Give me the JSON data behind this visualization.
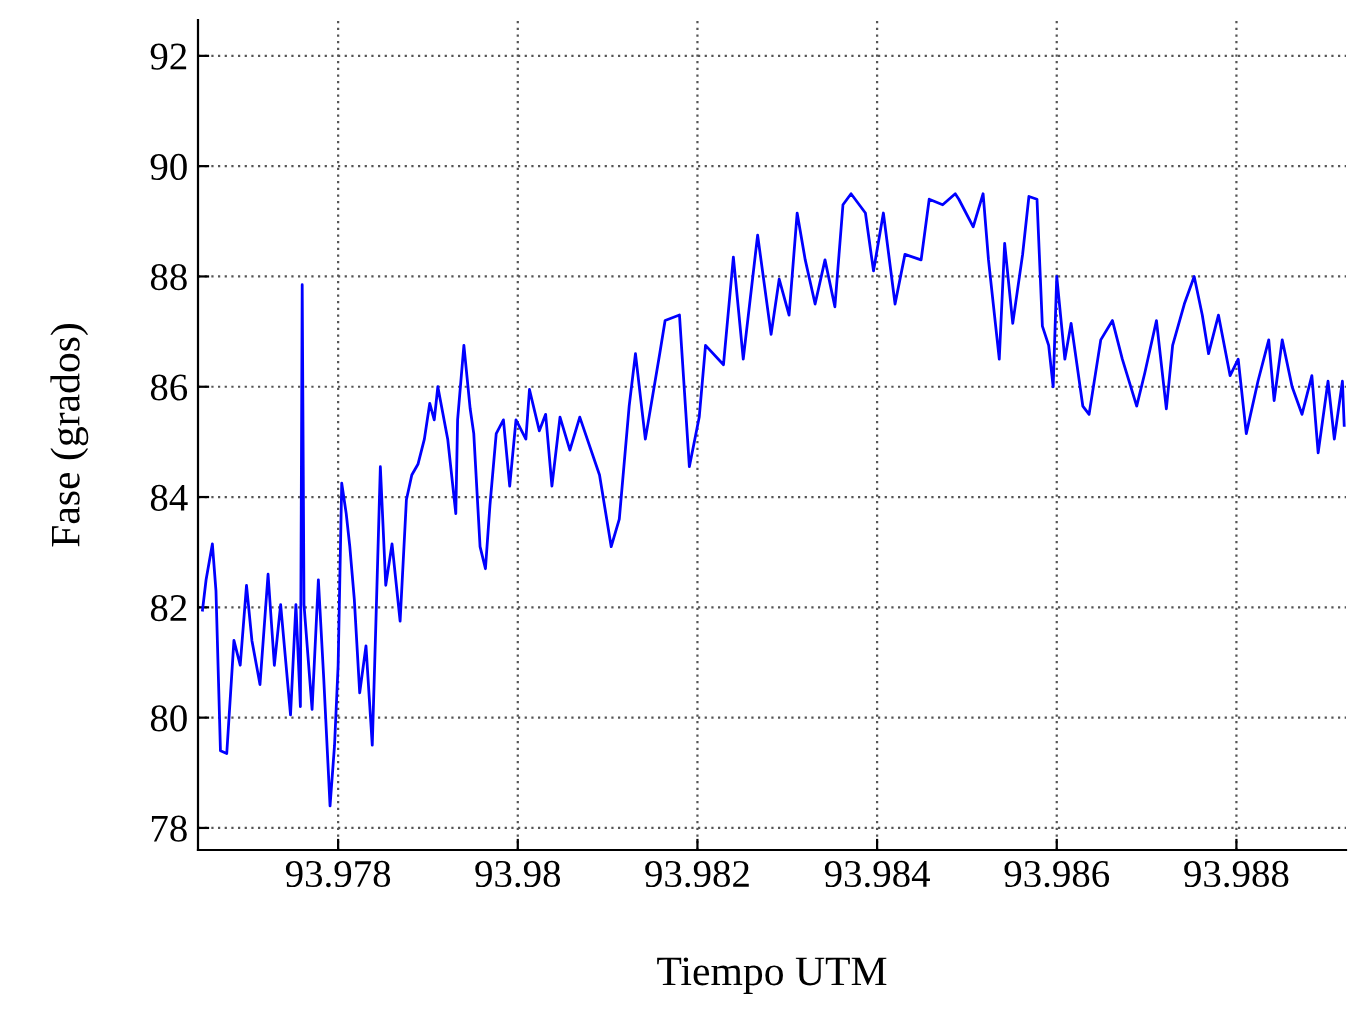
{
  "chart_data": {
    "type": "line",
    "xlabel": "Tiempo UTM",
    "ylabel": "Fase (grados)",
    "xlim": [
      93.97644,
      93.98922
    ],
    "ylim": [
      77.6,
      92.65
    ],
    "xticks": [
      93.978,
      93.98,
      93.982,
      93.984,
      93.986,
      93.988
    ],
    "yticks": [
      78,
      80,
      82,
      84,
      86,
      88,
      90,
      92
    ],
    "grid": true,
    "marker": "none",
    "line_style": "solid",
    "series": [
      {
        "color": "#0000ff",
        "x": [
          93.97649,
          93.97653,
          93.9766,
          93.97664,
          93.97669,
          93.97676,
          93.97684,
          93.97691,
          93.97698,
          93.97704,
          93.97713,
          93.97722,
          93.97729,
          93.97736,
          93.97747,
          93.97753,
          93.97758,
          93.9776,
          93.97762,
          93.97771,
          93.97778,
          93.97784,
          93.97791,
          93.97796,
          93.978,
          93.97804,
          93.97809,
          93.97813,
          93.97818,
          93.97824,
          93.97831,
          93.97838,
          93.97842,
          93.97847,
          93.97853,
          93.9786,
          93.97869,
          93.97876,
          93.97882,
          93.97889,
          93.97896,
          93.97902,
          93.97907,
          93.97911,
          93.97922,
          93.97931,
          93.97933,
          93.9794,
          93.97947,
          93.97951,
          93.97958,
          93.97964,
          93.97969,
          93.97976,
          93.97984,
          93.97991,
          93.97998,
          93.98009,
          93.98013,
          93.98024,
          93.98031,
          93.98038,
          93.98047,
          93.98058,
          93.98069,
          93.98091,
          93.98104,
          93.98113,
          93.98124,
          93.98131,
          93.98142,
          93.98158,
          93.98164,
          93.9818,
          93.98191,
          93.98202,
          93.98209,
          93.98229,
          93.9824,
          93.98251,
          93.98267,
          93.98282,
          93.98291,
          93.98302,
          93.98311,
          93.9832,
          93.98331,
          93.98342,
          93.98353,
          93.98362,
          93.98371,
          93.98387,
          93.98396,
          93.98407,
          93.9842,
          93.98431,
          93.98449,
          93.98458,
          93.98473,
          93.98487,
          93.98491,
          93.98507,
          93.98518,
          93.98524,
          93.98536,
          93.98542,
          93.98551,
          93.98562,
          93.98569,
          93.98578,
          93.98584,
          93.98591,
          93.98596,
          93.986,
          93.98609,
          93.98616,
          93.98629,
          93.98636,
          93.98649,
          93.98662,
          93.98673,
          93.98689,
          93.98698,
          93.98711,
          93.98722,
          93.98729,
          93.98742,
          93.98753,
          93.98762,
          93.98769,
          93.9878,
          93.98793,
          93.98802,
          93.98811,
          93.98824,
          93.98836,
          93.98842,
          93.98851,
          93.98862,
          93.98873,
          93.98884,
          93.98891,
          93.98902,
          93.98909,
          93.98918,
          93.9892
        ],
        "values": [
          81.95,
          82.5,
          83.15,
          82.3,
          79.4,
          79.35,
          81.4,
          80.95,
          82.4,
          81.4,
          80.6,
          82.6,
          80.95,
          82.05,
          80.05,
          82.05,
          80.2,
          87.85,
          82.05,
          80.15,
          82.5,
          80.7,
          78.4,
          79.5,
          80.95,
          84.25,
          83.7,
          83.1,
          82.15,
          80.45,
          81.3,
          79.5,
          81.7,
          84.55,
          82.4,
          83.15,
          81.75,
          83.95,
          84.4,
          84.6,
          85.05,
          85.7,
          85.4,
          86.0,
          85.05,
          83.7,
          85.4,
          86.75,
          85.6,
          85.15,
          83.1,
          82.7,
          83.85,
          85.15,
          85.4,
          84.2,
          85.4,
          85.05,
          85.95,
          85.2,
          85.5,
          84.2,
          85.45,
          84.85,
          85.45,
          84.4,
          83.1,
          83.6,
          85.65,
          86.6,
          85.05,
          86.6,
          87.2,
          87.3,
          84.55,
          85.45,
          86.75,
          86.4,
          88.35,
          86.5,
          88.75,
          86.95,
          87.95,
          87.3,
          89.15,
          88.3,
          87.5,
          88.3,
          87.45,
          89.3,
          89.5,
          89.15,
          88.1,
          89.15,
          87.5,
          88.4,
          88.3,
          89.4,
          89.3,
          89.5,
          89.4,
          88.9,
          89.5,
          88.3,
          86.5,
          88.6,
          87.15,
          88.4,
          89.45,
          89.4,
          87.1,
          86.75,
          86.0,
          88.0,
          86.5,
          87.15,
          85.65,
          85.5,
          86.85,
          87.2,
          86.5,
          85.65,
          86.25,
          87.2,
          85.6,
          86.75,
          87.5,
          88.0,
          87.3,
          86.6,
          87.3,
          86.2,
          86.5,
          85.15,
          86.1,
          86.85,
          85.75,
          86.85,
          86.0,
          85.5,
          86.2,
          84.8,
          86.1,
          85.05,
          86.1,
          85.3
        ]
      }
    ]
  }
}
